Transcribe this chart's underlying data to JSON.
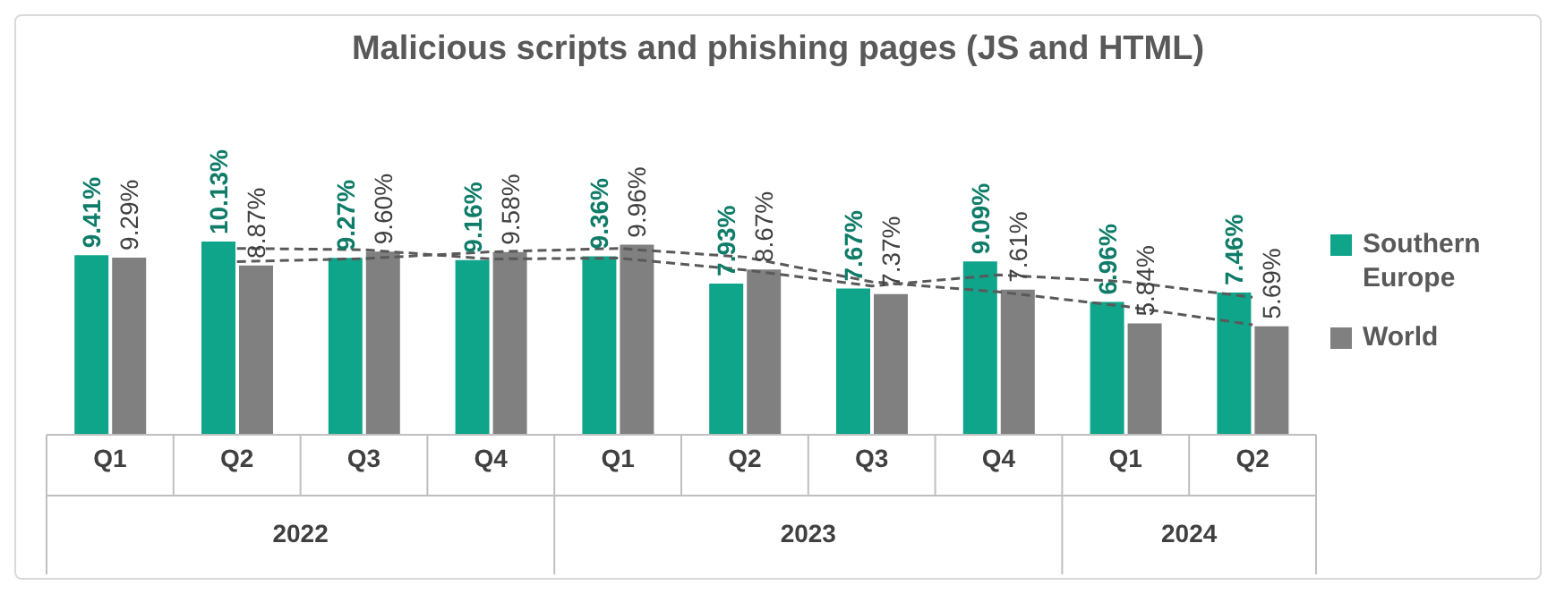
{
  "chart_data": {
    "type": "bar",
    "title": "Malicious scripts and phishing pages (JS and HTML)",
    "categories": [
      "Q1",
      "Q2",
      "Q3",
      "Q4",
      "Q1",
      "Q2",
      "Q3",
      "Q4",
      "Q1",
      "Q2"
    ],
    "annotations": [
      "2022",
      "2023",
      "2024"
    ],
    "series": [
      {
        "name": "Southern Europe",
        "color": "#0fa58a",
        "values": [
          9.41,
          10.13,
          9.27,
          9.16,
          9.36,
          7.93,
          7.67,
          9.09,
          6.96,
          7.46
        ],
        "value_labels": [
          "9.41%",
          "10.13%",
          "9.27%",
          "9.16%",
          "9.36%",
          "7.93%",
          "7.67%",
          "9.09%",
          "6.96%",
          "7.46%"
        ]
      },
      {
        "name": "World",
        "color": "#808080",
        "values": [
          9.29,
          8.87,
          9.6,
          9.58,
          9.96,
          8.67,
          7.37,
          7.61,
          5.84,
          5.69
        ],
        "value_labels": [
          "9.29%",
          "8.87%",
          "9.60%",
          "9.58%",
          "9.96%",
          "8.67%",
          "7.37%",
          "7.61%",
          "5.84%",
          "5.69%"
        ]
      },
      {
        "type": "line",
        "color": "#595959",
        "line_style": "dashed",
        "values": [
          null,
          9.77,
          9.7,
          9.215,
          9.26,
          8.645,
          7.8,
          8.38,
          8.025,
          7.21
        ]
      },
      {
        "type": "line",
        "color": "#595959",
        "line_style": "dashed",
        "values": [
          null,
          9.08,
          9.235,
          9.59,
          9.77,
          9.315,
          8.02,
          7.49,
          6.725,
          5.765
        ]
      }
    ],
    "legend": "right"
  }
}
